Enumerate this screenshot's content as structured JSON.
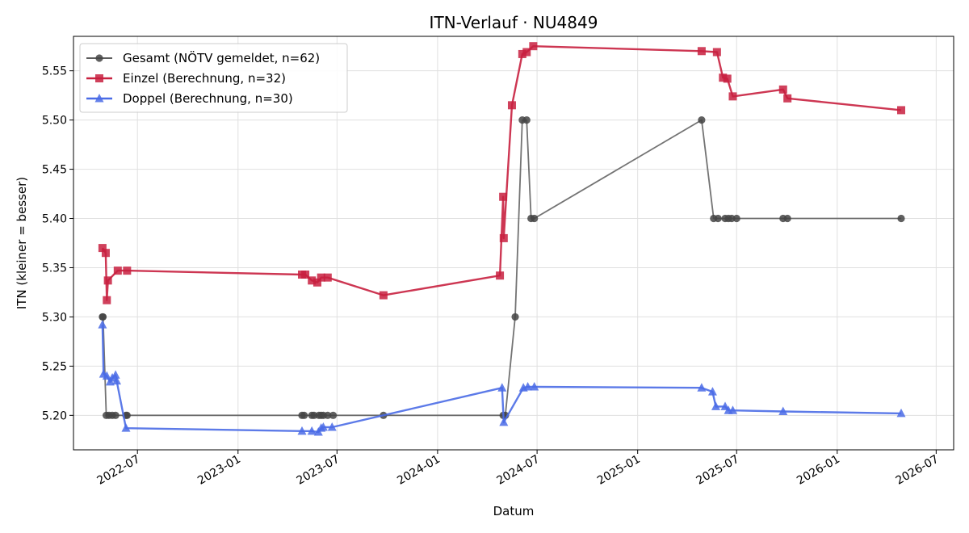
{
  "chart_data": {
    "type": "line",
    "title": "ITN-Verlauf · NU4849",
    "xlabel": "Datum",
    "ylabel": "ITN  (kleiner = besser)",
    "xlim": [
      "2022-03-06",
      "2026-08-02"
    ],
    "ylim": [
      5.165,
      5.585
    ],
    "grid": true,
    "legend_position": "top-left",
    "x_ticks": [
      "2022-07",
      "2023-01",
      "2023-07",
      "2024-01",
      "2024-07",
      "2025-01",
      "2025-07",
      "2026-01",
      "2026-07"
    ],
    "y_ticks": [
      5.2,
      5.25,
      5.3,
      5.35,
      5.4,
      5.45,
      5.5,
      5.55
    ],
    "series": [
      {
        "name": "Gesamt (NÖTV gemeldet, n=62)",
        "color": "#444444",
        "marker": "circle",
        "points": [
          [
            "2022-04-28",
            5.3
          ],
          [
            "2022-04-29",
            5.3
          ],
          [
            "2022-05-05",
            5.2
          ],
          [
            "2022-05-10",
            5.2
          ],
          [
            "2022-05-16",
            5.2
          ],
          [
            "2022-05-22",
            5.2
          ],
          [
            "2022-06-10",
            5.2
          ],
          [
            "2022-06-12",
            5.2
          ],
          [
            "2023-04-28",
            5.2
          ],
          [
            "2023-05-02",
            5.2
          ],
          [
            "2023-05-16",
            5.2
          ],
          [
            "2023-05-20",
            5.2
          ],
          [
            "2023-05-29",
            5.2
          ],
          [
            "2023-06-02",
            5.2
          ],
          [
            "2023-06-06",
            5.2
          ],
          [
            "2023-06-14",
            5.2
          ],
          [
            "2023-06-24",
            5.2
          ],
          [
            "2023-09-24",
            5.2
          ],
          [
            "2024-04-30",
            5.2
          ],
          [
            "2024-05-04",
            5.2
          ],
          [
            "2024-05-22",
            5.3
          ],
          [
            "2024-06-04",
            5.5
          ],
          [
            "2024-06-12",
            5.5
          ],
          [
            "2024-06-20",
            5.4
          ],
          [
            "2024-06-26",
            5.4
          ],
          [
            "2025-04-28",
            5.5
          ],
          [
            "2025-05-20",
            5.4
          ],
          [
            "2025-05-28",
            5.4
          ],
          [
            "2025-06-10",
            5.4
          ],
          [
            "2025-06-16",
            5.4
          ],
          [
            "2025-06-22",
            5.4
          ],
          [
            "2025-07-01",
            5.4
          ],
          [
            "2025-09-24",
            5.4
          ],
          [
            "2025-10-02",
            5.4
          ],
          [
            "2026-04-28",
            5.4
          ]
        ]
      },
      {
        "name": "Einzel (Berechnung, n=32)",
        "color": "#c8203f",
        "marker": "square",
        "points": [
          [
            "2022-04-28",
            5.37
          ],
          [
            "2022-05-04",
            5.365
          ],
          [
            "2022-05-06",
            5.317
          ],
          [
            "2022-05-08",
            5.337
          ],
          [
            "2022-05-26",
            5.347
          ],
          [
            "2022-06-12",
            5.347
          ],
          [
            "2023-04-28",
            5.343
          ],
          [
            "2023-05-04",
            5.343
          ],
          [
            "2023-05-16",
            5.337
          ],
          [
            "2023-05-26",
            5.335
          ],
          [
            "2023-06-02",
            5.34
          ],
          [
            "2023-06-14",
            5.34
          ],
          [
            "2023-09-24",
            5.322
          ],
          [
            "2024-04-24",
            5.342
          ],
          [
            "2024-04-30",
            5.422
          ],
          [
            "2024-05-01",
            5.38
          ],
          [
            "2024-05-16",
            5.515
          ],
          [
            "2024-06-04",
            5.567
          ],
          [
            "2024-06-12",
            5.569
          ],
          [
            "2024-06-24",
            5.575
          ],
          [
            "2025-04-28",
            5.57
          ],
          [
            "2025-05-26",
            5.569
          ],
          [
            "2025-06-06",
            5.543
          ],
          [
            "2025-06-14",
            5.542
          ],
          [
            "2025-06-24",
            5.524
          ],
          [
            "2025-09-24",
            5.531
          ],
          [
            "2025-10-02",
            5.522
          ],
          [
            "2026-04-28",
            5.51
          ]
        ]
      },
      {
        "name": "Doppel (Berechnung, n=30)",
        "color": "#4a6be6",
        "marker": "triangle",
        "points": [
          [
            "2022-04-28",
            5.292
          ],
          [
            "2022-04-30",
            5.242
          ],
          [
            "2022-05-06",
            5.24
          ],
          [
            "2022-05-12",
            5.234
          ],
          [
            "2022-05-16",
            5.238
          ],
          [
            "2022-05-22",
            5.241
          ],
          [
            "2022-05-24",
            5.235
          ],
          [
            "2022-06-10",
            5.187
          ],
          [
            "2023-04-28",
            5.184
          ],
          [
            "2023-05-16",
            5.184
          ],
          [
            "2023-05-28",
            5.183
          ],
          [
            "2023-06-02",
            5.187
          ],
          [
            "2023-06-06",
            5.188
          ],
          [
            "2023-06-22",
            5.188
          ],
          [
            "2024-04-28",
            5.228
          ],
          [
            "2024-05-01",
            5.193
          ],
          [
            "2024-06-06",
            5.228
          ],
          [
            "2024-06-14",
            5.229
          ],
          [
            "2024-06-26",
            5.229
          ],
          [
            "2025-04-28",
            5.228
          ],
          [
            "2025-05-18",
            5.224
          ],
          [
            "2025-05-24",
            5.209
          ],
          [
            "2025-06-10",
            5.209
          ],
          [
            "2025-06-16",
            5.205
          ],
          [
            "2025-06-24",
            5.205
          ],
          [
            "2025-09-24",
            5.204
          ],
          [
            "2026-04-28",
            5.202
          ]
        ]
      }
    ]
  }
}
